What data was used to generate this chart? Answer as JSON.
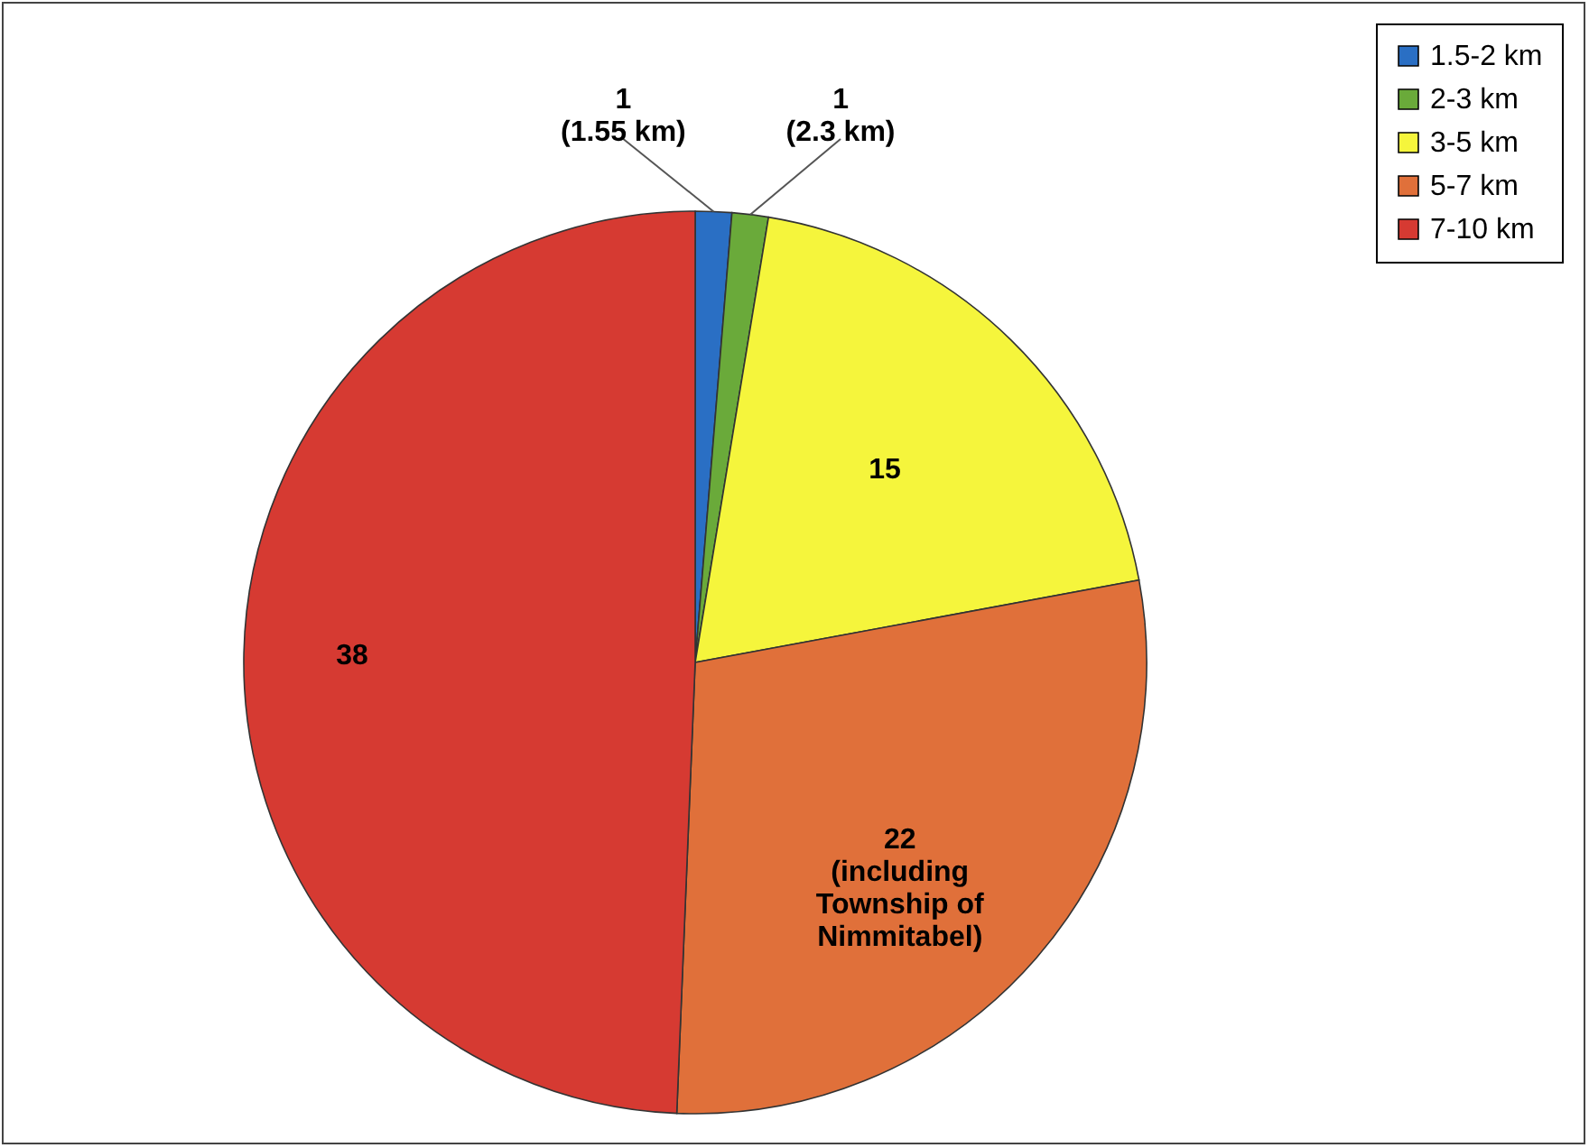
{
  "chart_data": {
    "type": "pie",
    "categories": [
      "1.5-2 km",
      "2-3 km",
      "3-5 km",
      "5-7 km",
      "7-10 km"
    ],
    "values": [
      1,
      1,
      15,
      22,
      38
    ],
    "colors": [
      "#2a6fc4",
      "#6aaa3a",
      "#f5f53c",
      "#e0703a",
      "#d63a32"
    ],
    "value_labels": [
      "1\n(1.55 km)",
      "1\n(2.3 km)",
      "15",
      "22\n(including\nTownship of\nNimmitabel)",
      "38"
    ],
    "legend": "top right"
  }
}
